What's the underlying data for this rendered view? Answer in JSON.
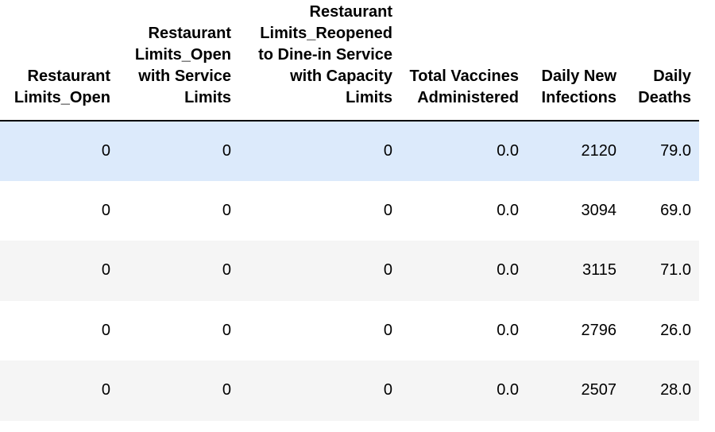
{
  "table": {
    "columns": [
      "Restaurant Limits_Open",
      "Restaurant Limits_Open with Service Limits",
      "Restaurant Limits_Reopened to Dine-in Service with Capacity Limits",
      "Total Vaccines Administered",
      "Daily New Infections",
      "Daily Deaths"
    ],
    "rows": [
      [
        "0",
        "0",
        "0",
        "0.0",
        "2120",
        "79.0"
      ],
      [
        "0",
        "0",
        "0",
        "0.0",
        "3094",
        "69.0"
      ],
      [
        "0",
        "0",
        "0",
        "0.0",
        "3115",
        "71.0"
      ],
      [
        "0",
        "0",
        "0",
        "0.0",
        "2796",
        "26.0"
      ],
      [
        "0",
        "0",
        "0",
        "0.0",
        "2507",
        "28.0"
      ]
    ],
    "highlight_color": "#dceafb",
    "stripe_color": "#f5f5f5"
  }
}
